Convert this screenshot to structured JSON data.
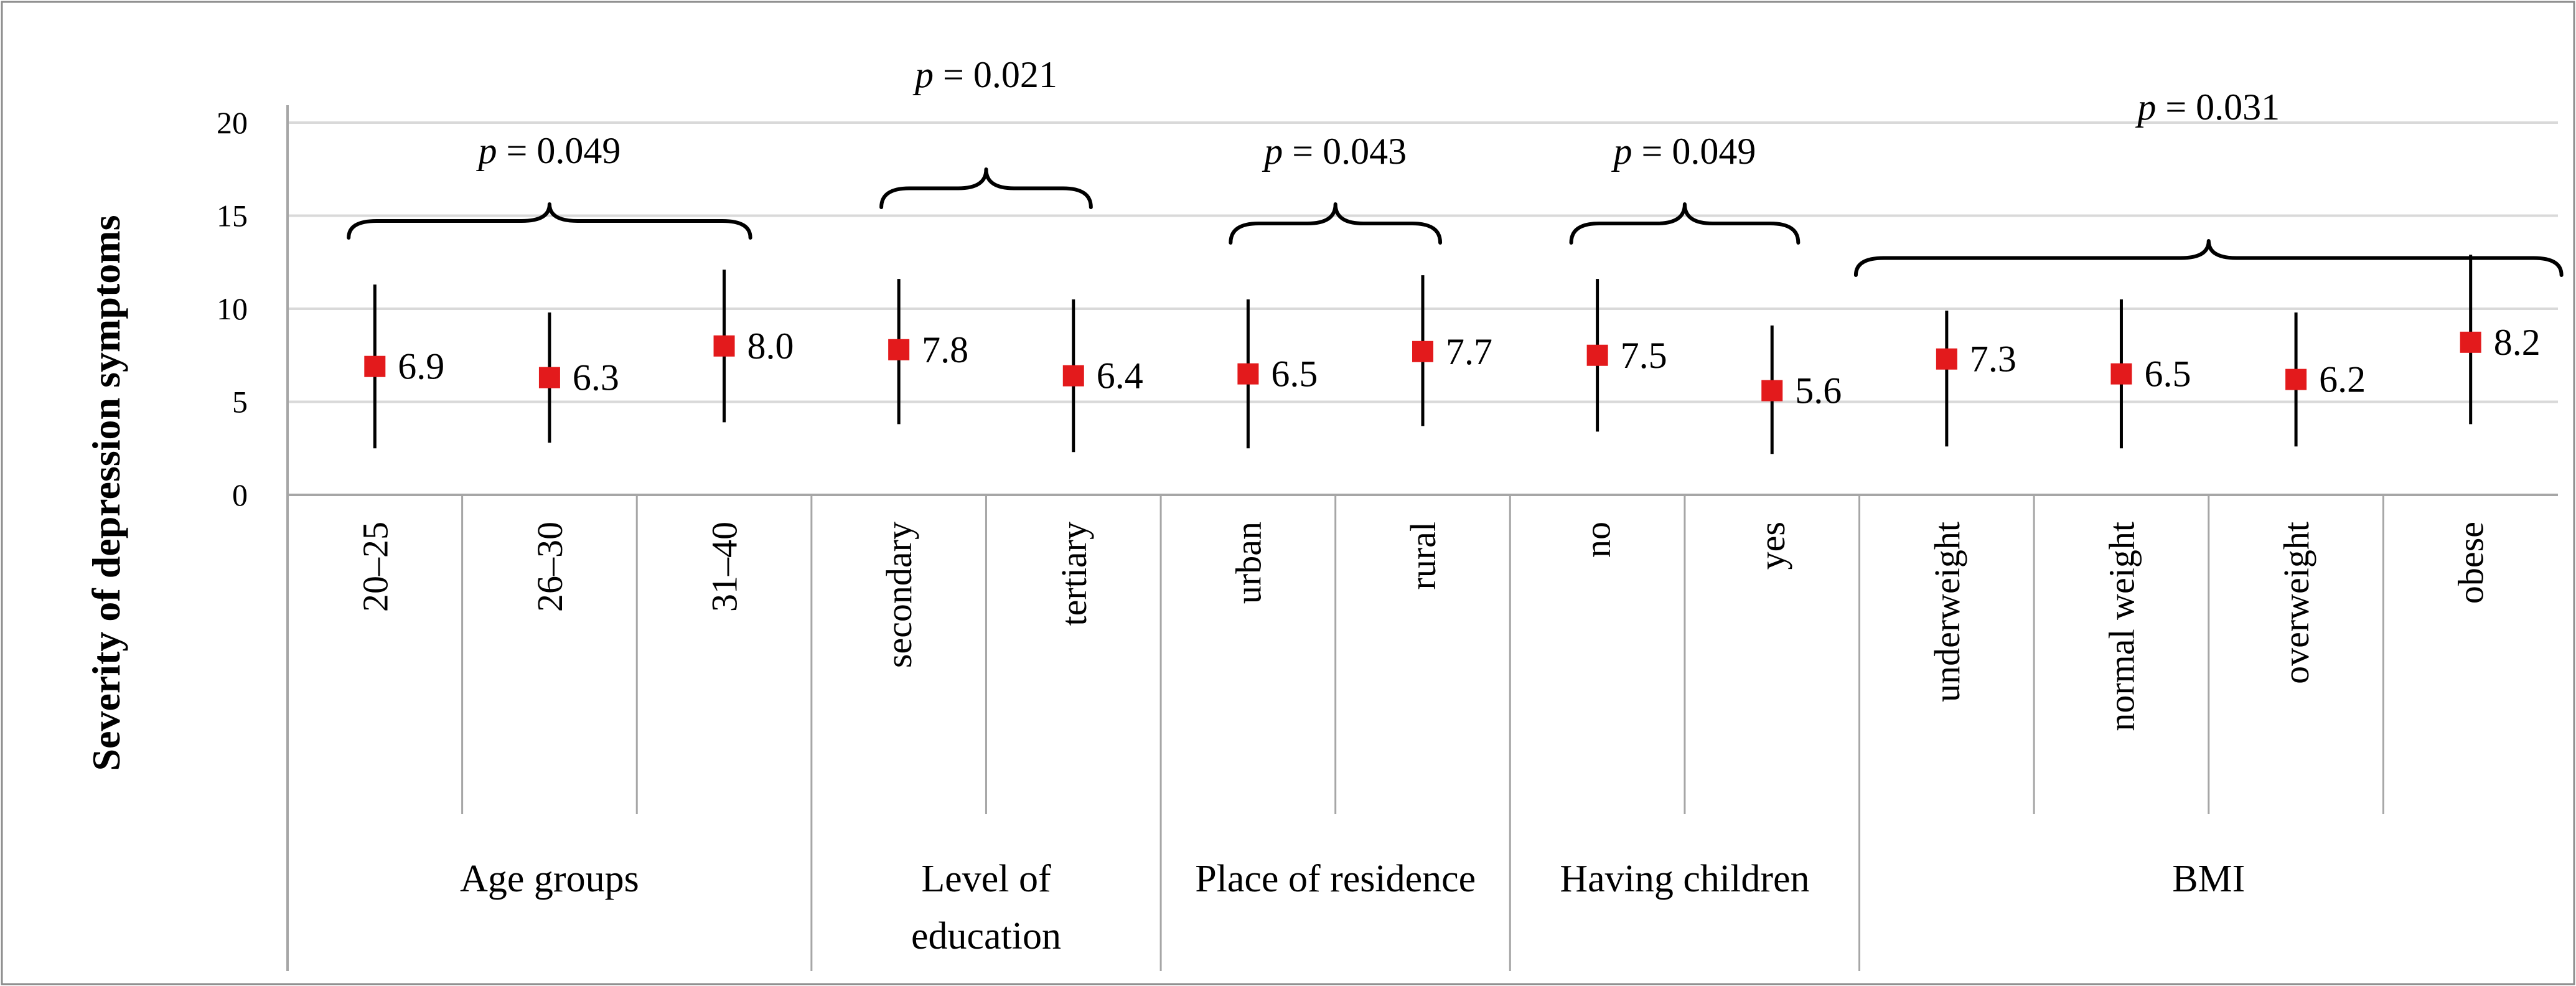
{
  "chart_data": {
    "type": "scatter",
    "ylabel": "Severity of depression symptoms",
    "ylim": [
      0,
      20
    ],
    "yticks": [
      0,
      5,
      10,
      15,
      20
    ],
    "grid": true,
    "groups": [
      {
        "name": "Age groups",
        "p_prefix": "p",
        "p_value": "= 0.049",
        "points": [
          {
            "category": "20–25",
            "mean": 6.9,
            "label": "6.9",
            "low": 2.5,
            "high": 11.3
          },
          {
            "category": "26–30",
            "mean": 6.3,
            "label": "6.3",
            "low": 2.8,
            "high": 9.8
          },
          {
            "category": "31–40",
            "mean": 8.0,
            "label": "8.0",
            "low": 3.9,
            "high": 12.1
          }
        ]
      },
      {
        "name": "Level of education",
        "name_lines": [
          "Level of",
          "education"
        ],
        "p_prefix": "p",
        "p_value": "= 0.021",
        "points": [
          {
            "category": "secondary",
            "mean": 7.8,
            "label": "7.8",
            "low": 3.8,
            "high": 11.6
          },
          {
            "category": "tertiary",
            "mean": 6.4,
            "label": "6.4",
            "low": 2.3,
            "high": 10.5
          }
        ]
      },
      {
        "name": "Place of residence",
        "p_prefix": "p",
        "p_value": "= 0.043",
        "points": [
          {
            "category": "urban",
            "mean": 6.5,
            "label": "6.5",
            "low": 2.5,
            "high": 10.5
          },
          {
            "category": "rural",
            "mean": 7.7,
            "label": "7.7",
            "low": 3.7,
            "high": 11.8
          }
        ]
      },
      {
        "name": "Having children",
        "p_prefix": "p",
        "p_value": "= 0.049",
        "points": [
          {
            "category": "no",
            "mean": 7.5,
            "label": "7.5",
            "low": 3.4,
            "high": 11.6
          },
          {
            "category": "yes",
            "mean": 5.6,
            "label": "5.6",
            "low": 2.2,
            "high": 9.1
          }
        ]
      },
      {
        "name": "BMI",
        "p_prefix": "p",
        "p_value": "= 0.031",
        "points": [
          {
            "category": "underweight",
            "mean": 7.3,
            "label": "7.3",
            "low": 2.6,
            "high": 9.9
          },
          {
            "category": "normal weight",
            "mean": 6.5,
            "label": "6.5",
            "low": 2.5,
            "high": 10.5
          },
          {
            "category": "overweight",
            "mean": 6.2,
            "label": "6.2",
            "low": 2.6,
            "high": 9.8
          },
          {
            "category": "obese",
            "mean": 8.2,
            "label": "8.2",
            "low": 3.8,
            "high": 12.9
          }
        ]
      }
    ]
  },
  "colors": {
    "marker": "#e31a1c",
    "error_bar": "#000000",
    "grid": "#d9d9d9",
    "axis": "#a6a6a6"
  }
}
